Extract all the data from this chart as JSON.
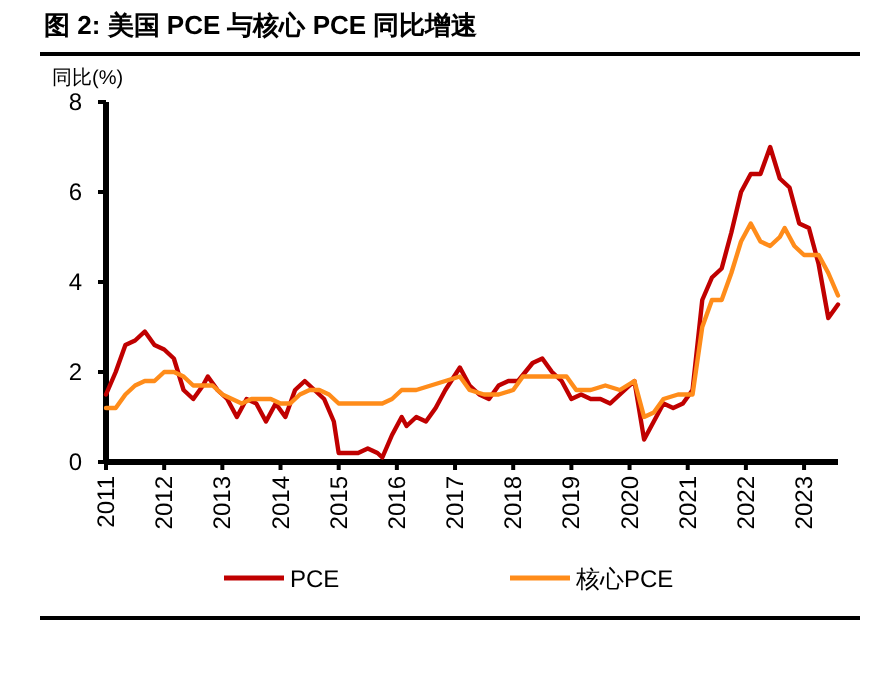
{
  "chart_data": {
    "type": "line",
    "title": "图 2: 美国 PCE 与核心 PCE 同比增速",
    "ylabel": "同比(%)",
    "x": [
      "2011-01",
      "2011-03",
      "2011-05",
      "2011-07",
      "2011-09",
      "2011-11",
      "2012-01",
      "2012-03",
      "2012-05",
      "2012-07",
      "2012-09",
      "2012-10",
      "2012-12",
      "2013-02",
      "2013-04",
      "2013-06",
      "2013-08",
      "2013-10",
      "2013-12",
      "2014-02",
      "2014-04",
      "2014-06",
      "2014-08",
      "2014-10",
      "2014-12",
      "2015-01",
      "2015-03",
      "2015-05",
      "2015-07",
      "2015-09",
      "2015-10",
      "2015-12",
      "2016-02",
      "2016-03",
      "2016-05",
      "2016-07",
      "2016-09",
      "2016-11",
      "2017-02",
      "2017-04",
      "2017-06",
      "2017-08",
      "2017-10",
      "2017-12",
      "2018-02",
      "2018-05",
      "2018-07",
      "2018-09",
      "2018-11",
      "2019-01",
      "2019-03",
      "2019-05",
      "2019-07",
      "2019-09",
      "2019-12",
      "2020-02",
      "2020-04",
      "2020-06",
      "2020-08",
      "2020-10",
      "2020-12",
      "2021-02",
      "2021-04",
      "2021-06",
      "2021-08",
      "2021-10",
      "2021-12",
      "2022-02",
      "2022-04",
      "2022-06",
      "2022-08",
      "2022-10",
      "2022-12",
      "2023-02",
      "2023-04",
      "2023-06",
      "2023-08"
    ],
    "series": [
      {
        "name": "PCE",
        "color": "#c00000",
        "values": [
          1.5,
          2.0,
          2.6,
          2.7,
          2.9,
          2.6,
          2.5,
          2.3,
          1.6,
          1.4,
          1.7,
          1.9,
          1.6,
          1.4,
          1.0,
          1.4,
          1.3,
          0.9,
          1.3,
          1.0,
          1.6,
          1.8,
          1.6,
          1.4,
          0.9,
          0.2,
          0.2,
          0.2,
          0.3,
          0.2,
          0.1,
          0.6,
          1.0,
          0.8,
          1.0,
          0.9,
          1.2,
          1.6,
          2.1,
          1.7,
          1.5,
          1.4,
          1.7,
          1.8,
          1.8,
          2.2,
          2.3,
          2.0,
          1.8,
          1.4,
          1.5,
          1.4,
          1.4,
          1.3,
          1.6,
          1.8,
          0.5,
          0.9,
          1.3,
          1.2,
          1.3,
          1.6,
          3.6,
          4.1,
          4.3,
          5.1,
          6.0,
          6.4,
          6.4,
          7.0,
          6.3,
          6.1,
          5.3,
          5.2,
          4.4,
          3.2,
          3.5
        ]
      },
      {
        "name": "核心PCE",
        "color": "#ff8c1a",
        "x": [
          "2011-01",
          "2011-03",
          "2011-05",
          "2011-07",
          "2011-09",
          "2011-11",
          "2012-01",
          "2012-03",
          "2012-05",
          "2012-07",
          "2012-09",
          "2012-11",
          "2013-01",
          "2013-03",
          "2013-05",
          "2013-07",
          "2013-09",
          "2013-11",
          "2014-01",
          "2014-03",
          "2014-05",
          "2014-07",
          "2014-09",
          "2014-11",
          "2015-01",
          "2015-04",
          "2015-07",
          "2015-10",
          "2015-12",
          "2016-02",
          "2016-05",
          "2016-08",
          "2016-11",
          "2017-02",
          "2017-04",
          "2017-07",
          "2017-10",
          "2018-01",
          "2018-03",
          "2018-06",
          "2018-09",
          "2018-12",
          "2019-02",
          "2019-05",
          "2019-08",
          "2019-11",
          "2020-02",
          "2020-04",
          "2020-06",
          "2020-08",
          "2020-11",
          "2021-02",
          "2021-04",
          "2021-06",
          "2021-08",
          "2021-10",
          "2021-12",
          "2022-02",
          "2022-04",
          "2022-06",
          "2022-08",
          "2022-09",
          "2022-11",
          "2023-01",
          "2023-04",
          "2023-06",
          "2023-08"
        ],
        "values": [
          1.2,
          1.2,
          1.5,
          1.7,
          1.8,
          1.8,
          2.0,
          2.0,
          1.9,
          1.7,
          1.7,
          1.7,
          1.5,
          1.4,
          1.3,
          1.4,
          1.4,
          1.4,
          1.3,
          1.3,
          1.5,
          1.6,
          1.6,
          1.5,
          1.3,
          1.3,
          1.3,
          1.3,
          1.4,
          1.6,
          1.6,
          1.7,
          1.8,
          1.9,
          1.6,
          1.5,
          1.5,
          1.6,
          1.9,
          1.9,
          1.9,
          1.9,
          1.6,
          1.6,
          1.7,
          1.6,
          1.8,
          1.0,
          1.1,
          1.4,
          1.5,
          1.5,
          3.0,
          3.6,
          3.6,
          4.2,
          4.9,
          5.3,
          4.9,
          4.8,
          5.0,
          5.2,
          4.8,
          4.6,
          4.6,
          4.2,
          3.7
        ]
      }
    ],
    "xlim": [
      "2011-01",
      "2023-08"
    ],
    "xticks": [
      "2011",
      "2012",
      "2013",
      "2014",
      "2015",
      "2016",
      "2017",
      "2018",
      "2019",
      "2020",
      "2021",
      "2022",
      "2023"
    ],
    "ylim": [
      0,
      8
    ],
    "yticks": [
      0,
      2,
      4,
      6,
      8
    ],
    "legend": "bottom"
  }
}
